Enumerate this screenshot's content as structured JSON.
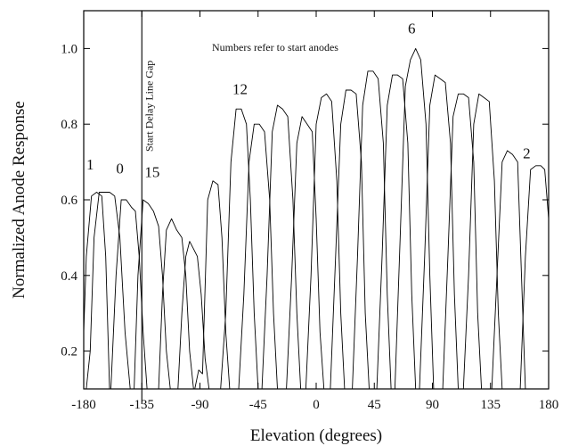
{
  "chart_data": {
    "type": "line",
    "title": "",
    "xlabel": "Elevation (degrees)",
    "ylabel": "Normalized Anode Response",
    "xlim": [
      -180,
      180
    ],
    "ylim": [
      0.1,
      1.1
    ],
    "xticks": [
      -180,
      -135,
      -90,
      -45,
      0,
      45,
      90,
      135,
      180
    ],
    "xtick_labels": [
      "-180",
      "-135",
      "-90",
      "-45",
      "0",
      "45",
      "90",
      "135",
      "180"
    ],
    "yticks": [
      0.2,
      0.4,
      0.6,
      0.8,
      1.0
    ],
    "ytick_labels": [
      "0.2",
      "0.4",
      "0.6",
      "0.8",
      "1.0"
    ],
    "grid": false,
    "annotation": "Numbers refer to start anodes",
    "marker_line": {
      "x": -135,
      "label": "Start Delay Line Gap"
    },
    "anode_labels": [
      {
        "text": "1",
        "x": -175,
        "y": 0.68
      },
      {
        "text": "0",
        "x": -152,
        "y": 0.67
      },
      {
        "text": "15",
        "x": -127,
        "y": 0.66
      },
      {
        "text": "12",
        "x": -59,
        "y": 0.88
      },
      {
        "text": "6",
        "x": 74,
        "y": 1.04
      },
      {
        "text": "2",
        "x": 163,
        "y": 0.71
      }
    ],
    "series": [
      {
        "x": [
          -180,
          -178,
          -174,
          -170,
          -166,
          -163,
          -160
        ],
        "y": [
          0.25,
          0.45,
          0.61,
          0.62,
          0.61,
          0.45,
          0.1
        ]
      },
      {
        "x": [
          -178,
          -175,
          -172,
          -168,
          -164,
          -160,
          -156,
          -152,
          -148,
          -144
        ],
        "y": [
          0.1,
          0.2,
          0.5,
          0.62,
          0.62,
          0.62,
          0.61,
          0.5,
          0.25,
          0.1
        ]
      },
      {
        "x": [
          -159,
          -155,
          -151,
          -147,
          -143,
          -140,
          -137,
          -134,
          -131
        ],
        "y": [
          0.1,
          0.4,
          0.6,
          0.6,
          0.58,
          0.57,
          0.45,
          0.25,
          0.1
        ]
      },
      {
        "x": [
          -141,
          -138,
          -134,
          -130,
          -126,
          -122,
          -119,
          -116,
          -113
        ],
        "y": [
          0.1,
          0.4,
          0.6,
          0.59,
          0.57,
          0.53,
          0.4,
          0.2,
          0.1
        ]
      },
      {
        "x": [
          -122,
          -119,
          -116,
          -112,
          -108,
          -104,
          -101,
          -98,
          -95
        ],
        "y": [
          0.1,
          0.35,
          0.52,
          0.55,
          0.52,
          0.5,
          0.4,
          0.2,
          0.1
        ]
      },
      {
        "x": [
          -107,
          -104,
          -101,
          -98,
          -95,
          -92,
          -89,
          -86,
          -83
        ],
        "y": [
          0.1,
          0.3,
          0.45,
          0.49,
          0.47,
          0.45,
          0.35,
          0.18,
          0.1
        ]
      },
      {
        "x": [
          -94,
          -91,
          -88,
          -84,
          -80,
          -76,
          -73,
          -70,
          -67
        ],
        "y": [
          0.1,
          0.15,
          0.14,
          0.6,
          0.65,
          0.64,
          0.5,
          0.25,
          0.1
        ]
      },
      {
        "x": [
          -74,
          -70,
          -66,
          -62,
          -58,
          -54,
          -51,
          -48,
          -45
        ],
        "y": [
          0.1,
          0.3,
          0.7,
          0.84,
          0.84,
          0.8,
          0.6,
          0.3,
          0.1
        ]
      },
      {
        "x": [
          -60,
          -56,
          -52,
          -48,
          -44,
          -40,
          -36,
          -33,
          -30
        ],
        "y": [
          0.1,
          0.35,
          0.7,
          0.8,
          0.8,
          0.78,
          0.6,
          0.3,
          0.1
        ]
      },
      {
        "x": [
          -42,
          -38,
          -34,
          -30,
          -26,
          -22,
          -18,
          -15,
          -12
        ],
        "y": [
          0.1,
          0.4,
          0.78,
          0.85,
          0.84,
          0.82,
          0.6,
          0.3,
          0.1
        ]
      },
      {
        "x": [
          -23,
          -19,
          -15,
          -11,
          -7,
          -3,
          0,
          3,
          6
        ],
        "y": [
          0.1,
          0.4,
          0.75,
          0.82,
          0.8,
          0.78,
          0.55,
          0.25,
          0.1
        ]
      },
      {
        "x": [
          -8,
          -4,
          0,
          4,
          8,
          12,
          16,
          19,
          22
        ],
        "y": [
          0.1,
          0.4,
          0.8,
          0.87,
          0.88,
          0.86,
          0.65,
          0.3,
          0.1
        ]
      },
      {
        "x": [
          11,
          15,
          19,
          23,
          27,
          31,
          35,
          38,
          41
        ],
        "y": [
          0.1,
          0.45,
          0.8,
          0.89,
          0.89,
          0.88,
          0.7,
          0.3,
          0.1
        ]
      },
      {
        "x": [
          28,
          32,
          36,
          40,
          44,
          48,
          52,
          55,
          58
        ],
        "y": [
          0.1,
          0.45,
          0.85,
          0.94,
          0.94,
          0.92,
          0.75,
          0.35,
          0.1
        ]
      },
      {
        "x": [
          47,
          51,
          55,
          59,
          63,
          67,
          71,
          74,
          77
        ],
        "y": [
          0.1,
          0.45,
          0.85,
          0.93,
          0.93,
          0.92,
          0.75,
          0.35,
          0.1
        ]
      },
      {
        "x": [
          61,
          65,
          69,
          73,
          77,
          81,
          85,
          88,
          91
        ],
        "y": [
          0.1,
          0.5,
          0.9,
          0.97,
          1.0,
          0.97,
          0.8,
          0.4,
          0.1
        ]
      },
      {
        "x": [
          80,
          84,
          88,
          92,
          96,
          100,
          104,
          107,
          110
        ],
        "y": [
          0.1,
          0.45,
          0.85,
          0.93,
          0.92,
          0.91,
          0.75,
          0.35,
          0.1
        ]
      },
      {
        "x": [
          98,
          102,
          106,
          110,
          114,
          118,
          122,
          125,
          128
        ],
        "y": [
          0.1,
          0.45,
          0.82,
          0.88,
          0.88,
          0.87,
          0.7,
          0.3,
          0.1
        ]
      },
      {
        "x": [
          114,
          118,
          122,
          126,
          130,
          134,
          138,
          141,
          144
        ],
        "y": [
          0.1,
          0.4,
          0.8,
          0.88,
          0.87,
          0.86,
          0.65,
          0.3,
          0.1
        ]
      },
      {
        "x": [
          136,
          140,
          144,
          148,
          152,
          156,
          159,
          162
        ],
        "y": [
          0.1,
          0.4,
          0.7,
          0.73,
          0.72,
          0.7,
          0.4,
          0.1
        ]
      },
      {
        "x": [
          158,
          162,
          166,
          170,
          174,
          177,
          180
        ],
        "y": [
          0.1,
          0.45,
          0.68,
          0.69,
          0.69,
          0.68,
          0.55
        ]
      }
    ]
  }
}
